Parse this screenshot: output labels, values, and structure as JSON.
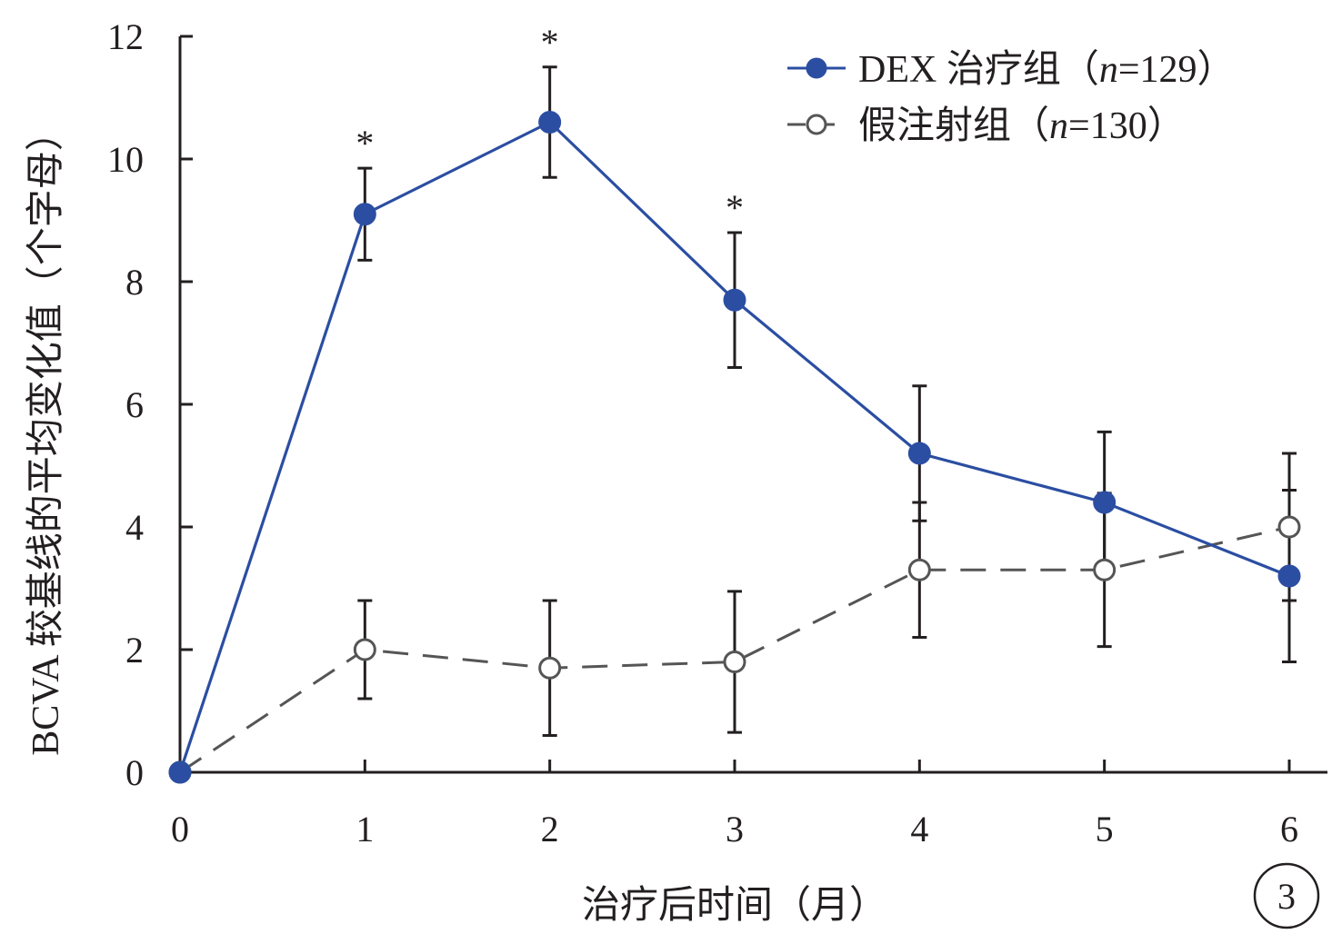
{
  "chart_data": {
    "type": "line",
    "title": "",
    "xlabel": "治疗后时间（月）",
    "ylabel": "BCVA 较基线的平均变化值（个字母）",
    "x": [
      0,
      1,
      2,
      3,
      4,
      5,
      6
    ],
    "xlim": [
      0,
      6
    ],
    "ylim": [
      0,
      12
    ],
    "yticks": [
      0,
      2,
      4,
      6,
      8,
      10,
      12
    ],
    "grid": false,
    "legend_position": "top-right",
    "panel_label": "3",
    "series": [
      {
        "name": "DEX 治疗组（n=129）",
        "legend_prefix": "DEX 治疗组（",
        "legend_n": "n",
        "legend_suffix": "=129）",
        "values": [
          0,
          9.1,
          10.6,
          7.7,
          5.2,
          4.4,
          3.2
        ],
        "error": [
          0,
          0.75,
          0.9,
          1.1,
          1.1,
          1.15,
          1.4
        ],
        "color": "#2b4ea2",
        "line_style": "solid",
        "marker": "filled-circle"
      },
      {
        "name": "假注射组（n=130）",
        "legend_prefix": "假注射组（",
        "legend_n": "n",
        "legend_suffix": "=130）",
        "values": [
          0,
          2.0,
          1.7,
          1.8,
          3.3,
          3.3,
          4.0
        ],
        "error": [
          0,
          0.8,
          1.1,
          1.15,
          1.1,
          1.25,
          1.2
        ],
        "color": "#555555",
        "line_style": "dashed",
        "marker": "open-circle"
      }
    ],
    "significance": [
      {
        "x": 1,
        "y": 9.1,
        "label": "*"
      },
      {
        "x": 2,
        "y": 10.6,
        "label": "*"
      },
      {
        "x": 3,
        "y": 7.7,
        "label": "*"
      }
    ]
  }
}
